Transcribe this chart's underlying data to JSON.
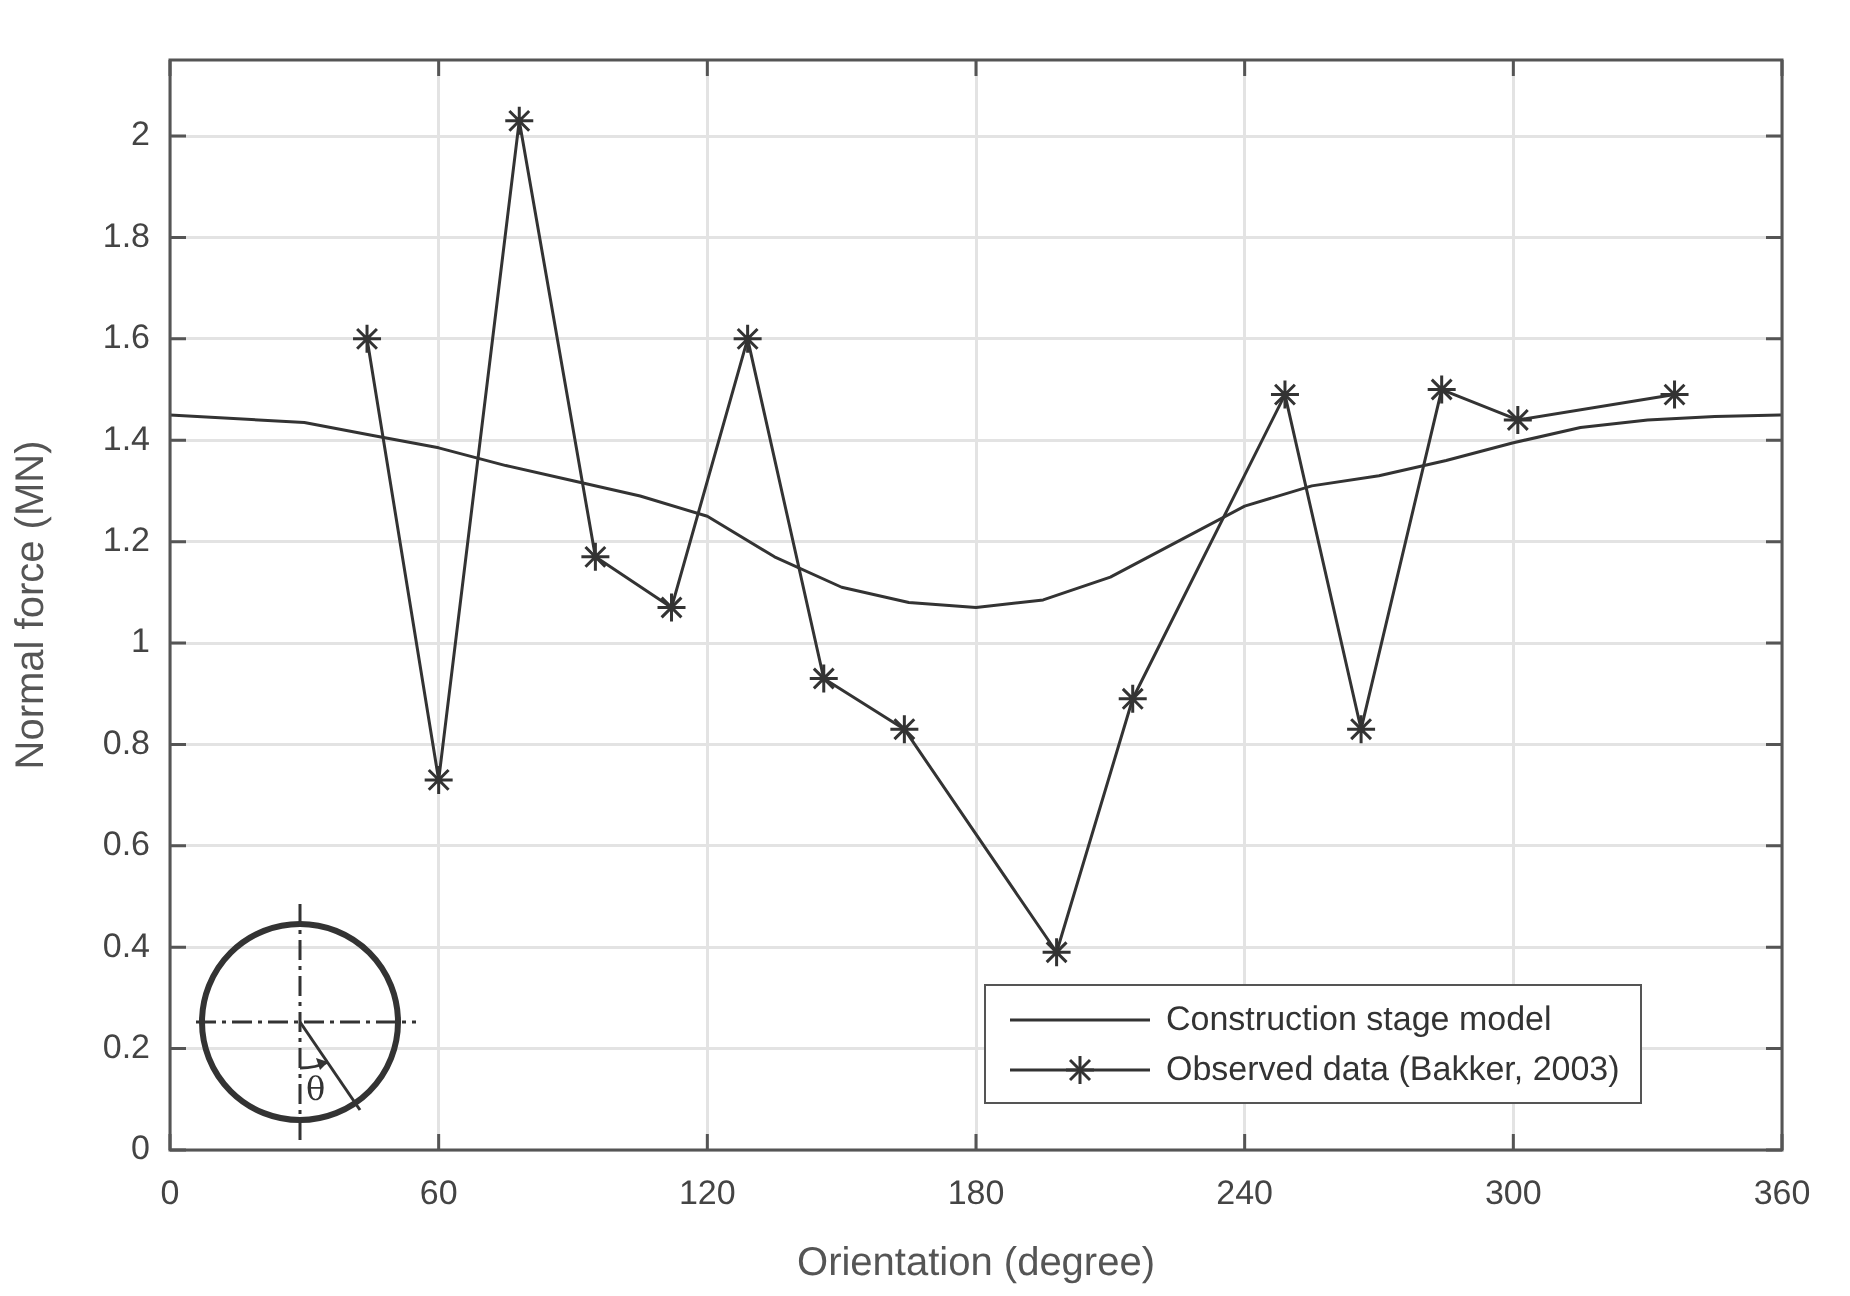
{
  "chart_data": {
    "type": "line",
    "xlabel": "Orientation (degree)",
    "ylabel": "Normal force (MN)",
    "xlim": [
      0,
      360
    ],
    "xticks": [
      0,
      60,
      120,
      180,
      240,
      300,
      360
    ],
    "ylim": [
      0,
      2.15
    ],
    "yticks": [
      0,
      0.2,
      0.4,
      0.6,
      0.8,
      1,
      1.2,
      1.4,
      1.6,
      1.8,
      2
    ],
    "grid": true,
    "legend": "bottom right",
    "annotations": [
      "θ"
    ],
    "series": [
      {
        "name": "Construction stage model",
        "color": "#333333",
        "marker": "none",
        "x": [
          0,
          30,
          45,
          60,
          75,
          90,
          105,
          120,
          135,
          150,
          165,
          180,
          195,
          210,
          225,
          240,
          255,
          270,
          285,
          300,
          315,
          330,
          345,
          360
        ],
        "values": [
          1.45,
          1.435,
          1.41,
          1.385,
          1.35,
          1.32,
          1.29,
          1.25,
          1.17,
          1.11,
          1.08,
          1.07,
          1.085,
          1.13,
          1.2,
          1.27,
          1.31,
          1.33,
          1.36,
          1.395,
          1.425,
          1.44,
          1.447,
          1.45
        ]
      },
      {
        "name": "Observed data (Bakker, 2003)",
        "color": "#333333",
        "marker": "cross",
        "x": [
          44,
          60,
          78,
          95,
          112,
          129,
          146,
          164,
          198,
          215,
          249,
          266,
          284,
          301,
          336
        ],
        "values": [
          1.6,
          0.73,
          2.03,
          1.17,
          1.07,
          1.6,
          0.93,
          0.83,
          0.39,
          0.89,
          1.49,
          0.83,
          1.5,
          1.44,
          1.49
        ]
      }
    ]
  }
}
